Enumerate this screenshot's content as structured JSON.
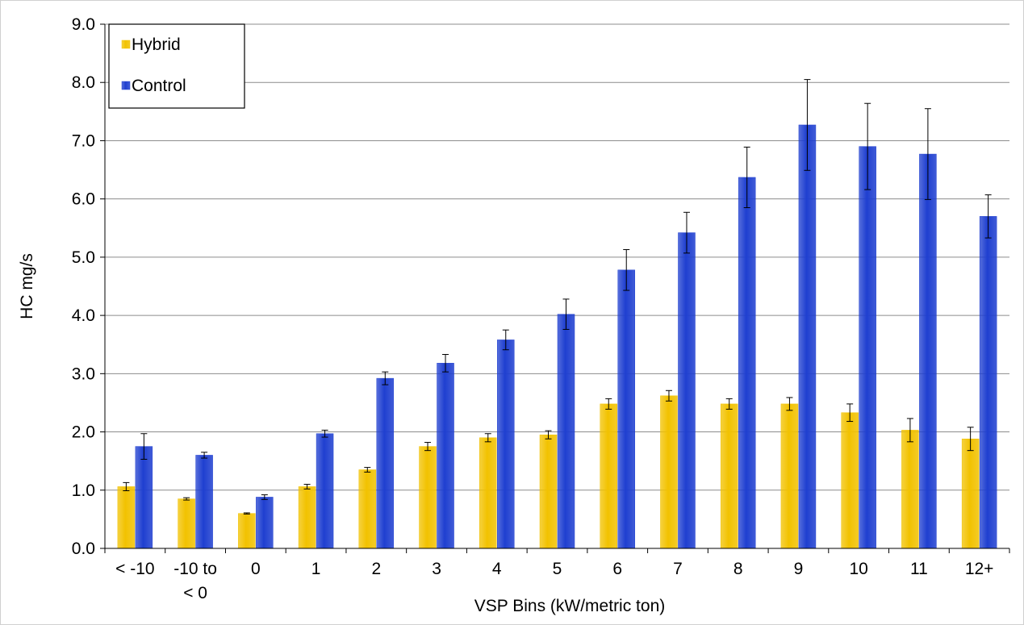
{
  "chart_data": {
    "type": "bar",
    "xlabel": "VSP Bins (kW/metric ton)",
    "ylabel": "HC mg/s",
    "ylim": [
      0,
      9
    ],
    "yticks": [
      "0.0",
      "1.0",
      "2.0",
      "3.0",
      "4.0",
      "5.0",
      "6.0",
      "7.0",
      "8.0",
      "9.0"
    ],
    "categories": [
      "< -10",
      "-10 to < 0",
      "0",
      "1",
      "2",
      "3",
      "4",
      "5",
      "6",
      "7",
      "8",
      "9",
      "10",
      "11",
      "12+"
    ],
    "category_lines": [
      [
        "< -10"
      ],
      [
        "-10 to",
        "< 0"
      ],
      [
        "0"
      ],
      [
        "1"
      ],
      [
        "2"
      ],
      [
        "3"
      ],
      [
        "4"
      ],
      [
        "5"
      ],
      [
        "6"
      ],
      [
        "7"
      ],
      [
        "8"
      ],
      [
        "9"
      ],
      [
        "10"
      ],
      [
        "11"
      ],
      [
        "12+"
      ]
    ],
    "series": [
      {
        "name": "Hybrid",
        "color": "#f2c200",
        "values": [
          1.06,
          0.85,
          0.6,
          1.06,
          1.35,
          1.75,
          1.9,
          1.95,
          2.48,
          2.62,
          2.48,
          2.48,
          2.33,
          2.03,
          1.88
        ],
        "error": [
          0.07,
          0.02,
          0.01,
          0.04,
          0.04,
          0.07,
          0.07,
          0.07,
          0.09,
          0.09,
          0.09,
          0.11,
          0.15,
          0.2,
          0.2
        ]
      },
      {
        "name": "Control",
        "color": "#1f3fd0",
        "values": [
          1.75,
          1.6,
          0.88,
          1.97,
          2.92,
          3.18,
          3.58,
          4.02,
          4.78,
          5.42,
          6.37,
          7.27,
          6.9,
          6.77,
          5.7
        ],
        "error": [
          0.22,
          0.05,
          0.04,
          0.06,
          0.11,
          0.15,
          0.17,
          0.26,
          0.35,
          0.35,
          0.52,
          0.78,
          0.74,
          0.78,
          0.37
        ]
      }
    ],
    "grid": true,
    "legend": "top-left"
  }
}
